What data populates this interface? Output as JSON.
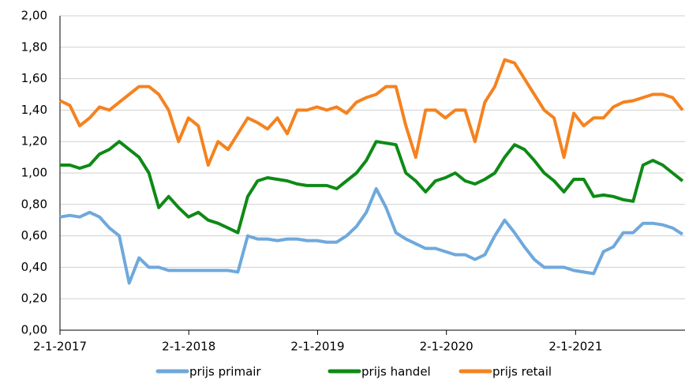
{
  "chart_data": {
    "type": "line",
    "x": [
      "2017-01-02",
      "2017-01-30",
      "2017-02-27",
      "2017-03-27",
      "2017-04-24",
      "2017-05-22",
      "2017-06-19",
      "2017-07-17",
      "2017-08-14",
      "2017-09-11",
      "2017-10-09",
      "2017-11-06",
      "2017-12-04",
      "2018-01-01",
      "2018-01-29",
      "2018-02-26",
      "2018-03-26",
      "2018-04-23",
      "2018-05-21",
      "2018-06-18",
      "2018-07-16",
      "2018-08-13",
      "2018-09-10",
      "2018-10-08",
      "2018-11-05",
      "2018-12-03",
      "2018-12-31",
      "2019-01-28",
      "2019-02-25",
      "2019-03-25",
      "2019-04-22",
      "2019-05-20",
      "2019-06-17",
      "2019-07-15",
      "2019-08-12",
      "2019-09-09",
      "2019-10-07",
      "2019-11-04",
      "2019-12-02",
      "2019-12-30",
      "2020-01-27",
      "2020-02-24",
      "2020-03-23",
      "2020-04-20",
      "2020-05-18",
      "2020-06-15",
      "2020-07-13",
      "2020-08-10",
      "2020-09-07",
      "2020-10-05",
      "2020-11-02",
      "2020-11-30",
      "2020-12-28",
      "2021-01-25",
      "2021-02-22",
      "2021-03-22",
      "2021-04-19",
      "2021-05-17",
      "2021-06-14",
      "2021-07-12",
      "2021-08-09",
      "2021-09-06",
      "2021-10-04",
      "2021-11-01"
    ],
    "series": [
      {
        "name": "prijs primair",
        "color": "#6fa8dc",
        "values": [
          0.72,
          0.73,
          0.72,
          0.75,
          0.72,
          0.65,
          0.6,
          0.3,
          0.46,
          0.4,
          0.4,
          0.38,
          0.38,
          0.38,
          0.38,
          0.38,
          0.38,
          0.38,
          0.37,
          0.6,
          0.58,
          0.58,
          0.57,
          0.58,
          0.58,
          0.57,
          0.57,
          0.56,
          0.56,
          0.6,
          0.66,
          0.75,
          0.9,
          0.78,
          0.62,
          0.58,
          0.55,
          0.52,
          0.52,
          0.5,
          0.48,
          0.48,
          0.45,
          0.48,
          0.6,
          0.7,
          0.62,
          0.53,
          0.45,
          0.4,
          0.4,
          0.4,
          0.38,
          0.37,
          0.36,
          0.5,
          0.53,
          0.62,
          0.62,
          0.68,
          0.68,
          0.67,
          0.65,
          0.61
        ]
      },
      {
        "name": "prijs handel",
        "color": "#0e8a16",
        "values": [
          1.05,
          1.05,
          1.03,
          1.05,
          1.12,
          1.15,
          1.2,
          1.15,
          1.1,
          1.0,
          0.78,
          0.85,
          0.78,
          0.72,
          0.75,
          0.7,
          0.68,
          0.65,
          0.62,
          0.85,
          0.95,
          0.97,
          0.96,
          0.95,
          0.93,
          0.92,
          0.92,
          0.92,
          0.9,
          0.95,
          1.0,
          1.08,
          1.2,
          1.19,
          1.18,
          1.0,
          0.95,
          0.88,
          0.95,
          0.97,
          1.0,
          0.95,
          0.93,
          0.96,
          1.0,
          1.1,
          1.18,
          1.15,
          1.08,
          1.0,
          0.95,
          0.88,
          0.96,
          0.96,
          0.85,
          0.86,
          0.85,
          0.83,
          0.82,
          1.05,
          1.08,
          1.05,
          1.0,
          0.95
        ]
      },
      {
        "name": "prijs retail",
        "color": "#f5821f",
        "values": [
          1.46,
          1.43,
          1.3,
          1.35,
          1.42,
          1.4,
          1.45,
          1.5,
          1.55,
          1.55,
          1.5,
          1.4,
          1.2,
          1.35,
          1.3,
          1.05,
          1.2,
          1.15,
          1.25,
          1.35,
          1.32,
          1.28,
          1.35,
          1.25,
          1.4,
          1.4,
          1.42,
          1.4,
          1.42,
          1.38,
          1.45,
          1.48,
          1.5,
          1.55,
          1.55,
          1.3,
          1.1,
          1.4,
          1.4,
          1.35,
          1.4,
          1.4,
          1.2,
          1.45,
          1.55,
          1.72,
          1.7,
          1.6,
          1.5,
          1.4,
          1.35,
          1.1,
          1.38,
          1.3,
          1.35,
          1.35,
          1.42,
          1.45,
          1.46,
          1.48,
          1.5,
          1.5,
          1.48,
          1.4
        ]
      }
    ],
    "xlim": [
      "2017-01-02",
      "2021-11-08"
    ],
    "xticks": [
      {
        "value": "2017-01-02",
        "label": "2-1-2017"
      },
      {
        "value": "2018-01-02",
        "label": "2-1-2018"
      },
      {
        "value": "2019-01-02",
        "label": "2-1-2019"
      },
      {
        "value": "2020-01-02",
        "label": "2-1-2020"
      },
      {
        "value": "2021-01-02",
        "label": "2-1-2021"
      }
    ],
    "ylim": [
      0,
      2
    ],
    "yticks": [
      {
        "value": 0,
        "label": "0,00"
      },
      {
        "value": 0.2,
        "label": "0,20"
      },
      {
        "value": 0.4,
        "label": "0,40"
      },
      {
        "value": 0.6,
        "label": "0,60"
      },
      {
        "value": 0.8,
        "label": "0,80"
      },
      {
        "value": 1,
        "label": "1,00"
      },
      {
        "value": 1.2,
        "label": "1,20"
      },
      {
        "value": 1.4,
        "label": "1,40"
      },
      {
        "value": 1.6,
        "label": "1,60"
      },
      {
        "value": 1.8,
        "label": "1,80"
      },
      {
        "value": 2,
        "label": "2,00"
      }
    ],
    "grid": true,
    "legend": "bottom"
  }
}
